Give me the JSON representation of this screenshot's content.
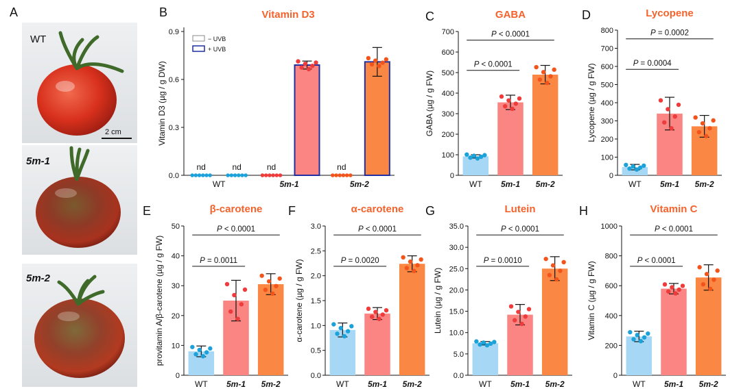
{
  "panel_letters": [
    "A",
    "B",
    "C",
    "D",
    "E",
    "F",
    "G",
    "H"
  ],
  "photos": {
    "items": [
      {
        "label": "WT",
        "italic": false
      },
      {
        "label": "5m-1",
        "italic": true
      },
      {
        "label": "5m-2",
        "italic": true
      }
    ],
    "scale_bar": "2 cm"
  },
  "colors": {
    "WT": "#A6D8F5",
    "WT_dot": "#1BA2DA",
    "5m-1": "#FA8583",
    "5m-1_dot": "#EE3B3B",
    "5m-2": "#FB8745",
    "5m-2_dot": "#F2541B",
    "uvb_border": "#1F2FA3",
    "title": "#F5622C"
  },
  "chart_data": [
    {
      "panel": "B",
      "type": "bar",
      "title": "Vitamin D3",
      "ylabel": "Vitamin D3 (µg / g DW)",
      "ylim": [
        0,
        0.9
      ],
      "yticks": [
        "0.0",
        "0.3",
        "0.6",
        "0.9"
      ],
      "groups": [
        "WT",
        "5m-1",
        "5m-2"
      ],
      "legend": [
        {
          "label": "− UVB"
        },
        {
          "label": "+ UVB"
        }
      ],
      "legend_position": "top-left",
      "bars": [
        {
          "group": "WT",
          "treatment": "− UVB",
          "value": 0,
          "label": "nd"
        },
        {
          "group": "WT",
          "treatment": "+ UVB",
          "value": 0,
          "label": "nd"
        },
        {
          "group": "5m-1",
          "treatment": "− UVB",
          "value": 0,
          "label": "nd"
        },
        {
          "group": "5m-1",
          "treatment": "+ UVB",
          "value": 0.69,
          "err": 0.025
        },
        {
          "group": "5m-2",
          "treatment": "− UVB",
          "value": 0,
          "label": "nd"
        },
        {
          "group": "5m-2",
          "treatment": "+ UVB",
          "value": 0.71,
          "err": 0.09
        }
      ]
    },
    {
      "panel": "C",
      "type": "bar",
      "title": "GABA",
      "ylabel": "GABA (µg / g FW)",
      "ylim": [
        0,
        700
      ],
      "yticks": [
        "0",
        "100",
        "200",
        "300",
        "400",
        "500",
        "600",
        "700"
      ],
      "categories": [
        "WT",
        "5m-1",
        "5m-2"
      ],
      "values": [
        92,
        355,
        490
      ],
      "errors": [
        8,
        35,
        45
      ],
      "comparisons": [
        {
          "pair": [
            "WT",
            "5m-1"
          ],
          "text": "P < 0.0001"
        },
        {
          "pair": [
            "WT",
            "5m-2"
          ],
          "text": "P < 0.0001"
        }
      ]
    },
    {
      "panel": "D",
      "type": "bar",
      "title": "Lycopene",
      "ylabel": "Lycopene (µg / g FW)",
      "ylim": [
        0,
        800
      ],
      "yticks": [
        "0",
        "100",
        "200",
        "300",
        "400",
        "500",
        "600",
        "700",
        "800"
      ],
      "categories": [
        "WT",
        "5m-1",
        "5m-2"
      ],
      "values": [
        45,
        340,
        270
      ],
      "errors": [
        15,
        90,
        60
      ],
      "comparisons": [
        {
          "pair": [
            "WT",
            "5m-1"
          ],
          "text": "P = 0.0004"
        },
        {
          "pair": [
            "WT",
            "5m-2"
          ],
          "text": "P = 0.0002"
        }
      ]
    },
    {
      "panel": "E",
      "type": "bar",
      "title": "β-carotene",
      "ylabel": "provitamin A/β-carotene (µg / g FW)",
      "ylim": [
        0,
        50
      ],
      "yticks": [
        "0",
        "10",
        "20",
        "30",
        "40",
        "50"
      ],
      "categories": [
        "WT",
        "5m-1",
        "5m-2"
      ],
      "values": [
        8,
        25,
        30.5
      ],
      "errors": [
        1.8,
        6.8,
        3.5
      ],
      "comparisons": [
        {
          "pair": [
            "WT",
            "5m-1"
          ],
          "text": "P = 0.0011"
        },
        {
          "pair": [
            "WT",
            "5m-2"
          ],
          "text": "P < 0.0001"
        }
      ]
    },
    {
      "panel": "F",
      "type": "bar",
      "title": "α-carotene",
      "ylabel": "α-carotene (µg / g FW)",
      "ylim": [
        0,
        3.0
      ],
      "yticks": [
        "0.0",
        "0.5",
        "1.0",
        "1.5",
        "2.0",
        "2.5",
        "3.0"
      ],
      "categories": [
        "WT",
        "5m-1",
        "5m-2"
      ],
      "values": [
        0.91,
        1.24,
        2.24
      ],
      "errors": [
        0.14,
        0.12,
        0.16
      ],
      "comparisons": [
        {
          "pair": [
            "WT",
            "5m-1"
          ],
          "text": "P = 0.0020"
        },
        {
          "pair": [
            "WT",
            "5m-2"
          ],
          "text": "P < 0.0001"
        }
      ]
    },
    {
      "panel": "G",
      "type": "bar",
      "title": "Lutein",
      "ylabel": "Lutein (µg / g FW)",
      "ylim": [
        0,
        35
      ],
      "yticks": [
        "0.0",
        "5.0",
        "10.0",
        "15.0",
        "20.0",
        "25.0",
        "30.0",
        "35.0"
      ],
      "categories": [
        "WT",
        "5m-1",
        "5m-2"
      ],
      "values": [
        7.5,
        14.2,
        25
      ],
      "errors": [
        0.4,
        2.4,
        2.8
      ],
      "comparisons": [
        {
          "pair": [
            "WT",
            "5m-1"
          ],
          "text": "P = 0.0010"
        },
        {
          "pair": [
            "WT",
            "5m-2"
          ],
          "text": "P < 0.0001"
        }
      ]
    },
    {
      "panel": "H",
      "type": "bar",
      "title": "Vitamin C",
      "ylabel": "Vitamin C (µg / g FW)",
      "ylim": [
        0,
        1000
      ],
      "yticks": [
        "0",
        "200",
        "400",
        "600",
        "800",
        "1000"
      ],
      "categories": [
        "WT",
        "5m-1",
        "5m-2"
      ],
      "values": [
        260,
        580,
        655
      ],
      "errors": [
        35,
        35,
        85
      ],
      "comparisons": [
        {
          "pair": [
            "WT",
            "5m-1"
          ],
          "text": "P < 0.0001"
        },
        {
          "pair": [
            "WT",
            "5m-2"
          ],
          "text": "P < 0.0001"
        }
      ]
    }
  ]
}
